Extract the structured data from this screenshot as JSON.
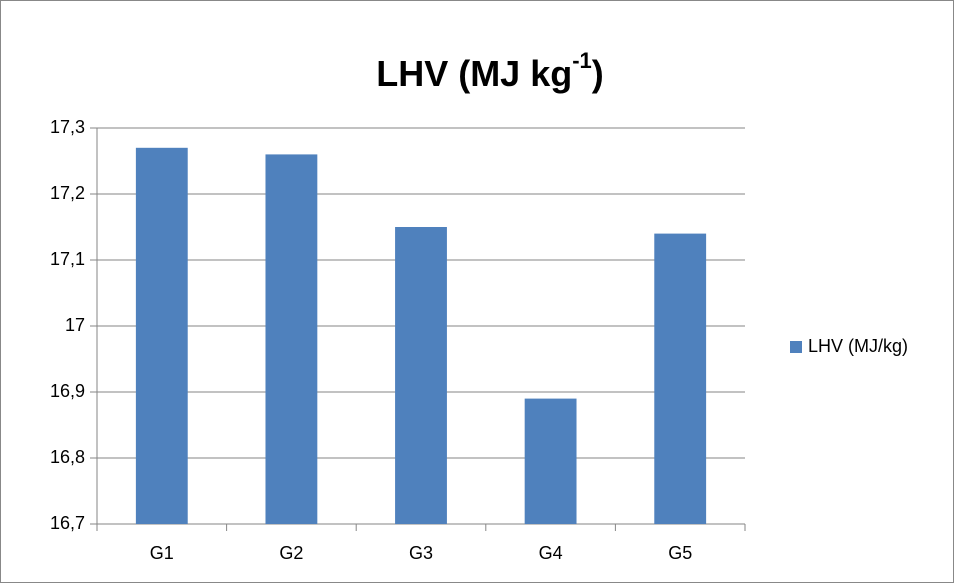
{
  "chart_data": {
    "type": "bar",
    "title": {
      "text": "LHV (MJ kg",
      "superscript": "-1",
      "suffix": ")"
    },
    "categories": [
      "G1",
      "G2",
      "G3",
      "G4",
      "G5"
    ],
    "series": [
      {
        "name": "LHV (MJ/kg)",
        "color": "#4f81bd",
        "values": [
          17.27,
          17.26,
          17.15,
          16.89,
          17.14
        ]
      }
    ],
    "ylim": [
      16.7,
      17.3
    ],
    "yticks": [
      {
        "value": 16.7,
        "label": "16,7"
      },
      {
        "value": 16.8,
        "label": "16,8"
      },
      {
        "value": 16.9,
        "label": "16,9"
      },
      17,
      {
        "value": 17.1,
        "label": "17,1"
      },
      {
        "value": 17.2,
        "label": "17,2"
      },
      {
        "value": 17.3,
        "label": "17,3"
      }
    ],
    "grid": true,
    "legend": "right"
  }
}
